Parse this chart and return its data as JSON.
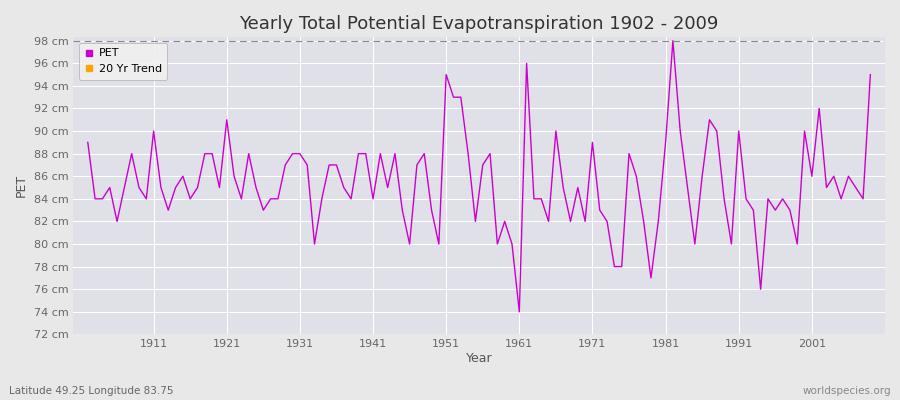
{
  "title": "Yearly Total Potential Evapotranspiration 1902 - 2009",
  "xlabel": "Year",
  "ylabel": "PET",
  "subtitle": "Latitude 49.25 Longitude 83.75",
  "watermark": "worldspecies.org",
  "ylim": [
    72,
    98
  ],
  "ytick_step": 2,
  "years": [
    1902,
    1903,
    1904,
    1905,
    1906,
    1907,
    1908,
    1909,
    1910,
    1911,
    1912,
    1913,
    1914,
    1915,
    1916,
    1917,
    1918,
    1919,
    1920,
    1921,
    1922,
    1923,
    1924,
    1925,
    1926,
    1927,
    1928,
    1929,
    1930,
    1931,
    1932,
    1933,
    1934,
    1935,
    1936,
    1937,
    1938,
    1939,
    1940,
    1941,
    1942,
    1943,
    1944,
    1945,
    1946,
    1947,
    1948,
    1949,
    1950,
    1951,
    1952,
    1953,
    1954,
    1955,
    1956,
    1957,
    1958,
    1959,
    1960,
    1961,
    1962,
    1963,
    1964,
    1965,
    1966,
    1967,
    1968,
    1969,
    1970,
    1971,
    1972,
    1973,
    1974,
    1975,
    1976,
    1977,
    1978,
    1979,
    1980,
    1981,
    1982,
    1983,
    1984,
    1985,
    1986,
    1987,
    1988,
    1989,
    1990,
    1991,
    1992,
    1993,
    1994,
    1995,
    1996,
    1997,
    1998,
    1999,
    2000,
    2001,
    2002,
    2003,
    2004,
    2005,
    2006,
    2007,
    2008,
    2009
  ],
  "pet": [
    89,
    null,
    84,
    null,
    null,
    null,
    null,
    null,
    null,
    90,
    null,
    null,
    85,
    null,
    null,
    null,
    null,
    null,
    null,
    91,
    null,
    null,
    88,
    null,
    null,
    null,
    null,
    null,
    null,
    88,
    null,
    null,
    null,
    null,
    null,
    null,
    null,
    null,
    null,
    null,
    88,
    null,
    null,
    null,
    null,
    null,
    null,
    null,
    null,
    null,
    null,
    null,
    null,
    null,
    null,
    null,
    null,
    null,
    null,
    null,
    null,
    null,
    null,
    null,
    null,
    null,
    null,
    null,
    null,
    null,
    null,
    null,
    null,
    null,
    null,
    null,
    null,
    null,
    null,
    null,
    null,
    null,
    null,
    null,
    null,
    null,
    null,
    null,
    null,
    null,
    null,
    null,
    null,
    null,
    null,
    null,
    null,
    null,
    null,
    null,
    null,
    null,
    null,
    null,
    null,
    null,
    null,
    null
  ],
  "pet_full": [
    89,
    84,
    84,
    85,
    82,
    85,
    88,
    85,
    84,
    90,
    85,
    83,
    85,
    86,
    84,
    85,
    88,
    88,
    85,
    91,
    86,
    84,
    88,
    85,
    83,
    84,
    84,
    87,
    88,
    88,
    87,
    80,
    84,
    87,
    87,
    85,
    84,
    88,
    88,
    84,
    88,
    85,
    88,
    83,
    80,
    87,
    88,
    83,
    80,
    95,
    93,
    93,
    88,
    82,
    87,
    88,
    80,
    82,
    80,
    74,
    96,
    84,
    84,
    82,
    90,
    85,
    82,
    85,
    82,
    89,
    83,
    82,
    78,
    78,
    88,
    86,
    82,
    77,
    82,
    89,
    98,
    90,
    85,
    80,
    86,
    91,
    90,
    84,
    80,
    90,
    84,
    83,
    76,
    84,
    83,
    84,
    83,
    80,
    90,
    86,
    92,
    85,
    86,
    84,
    86,
    85,
    84,
    95
  ],
  "line_color": "#CC00CC",
  "trend_color": "#FFA500",
  "bg_color": "#E8E8E8",
  "plot_bg": "#E0E0E8",
  "grid_color": "#FFFFFF",
  "dashed_top_color": "#888888",
  "title_fontsize": 13,
  "label_fontsize": 9,
  "legend_fontsize": 8,
  "tick_fontsize": 8
}
